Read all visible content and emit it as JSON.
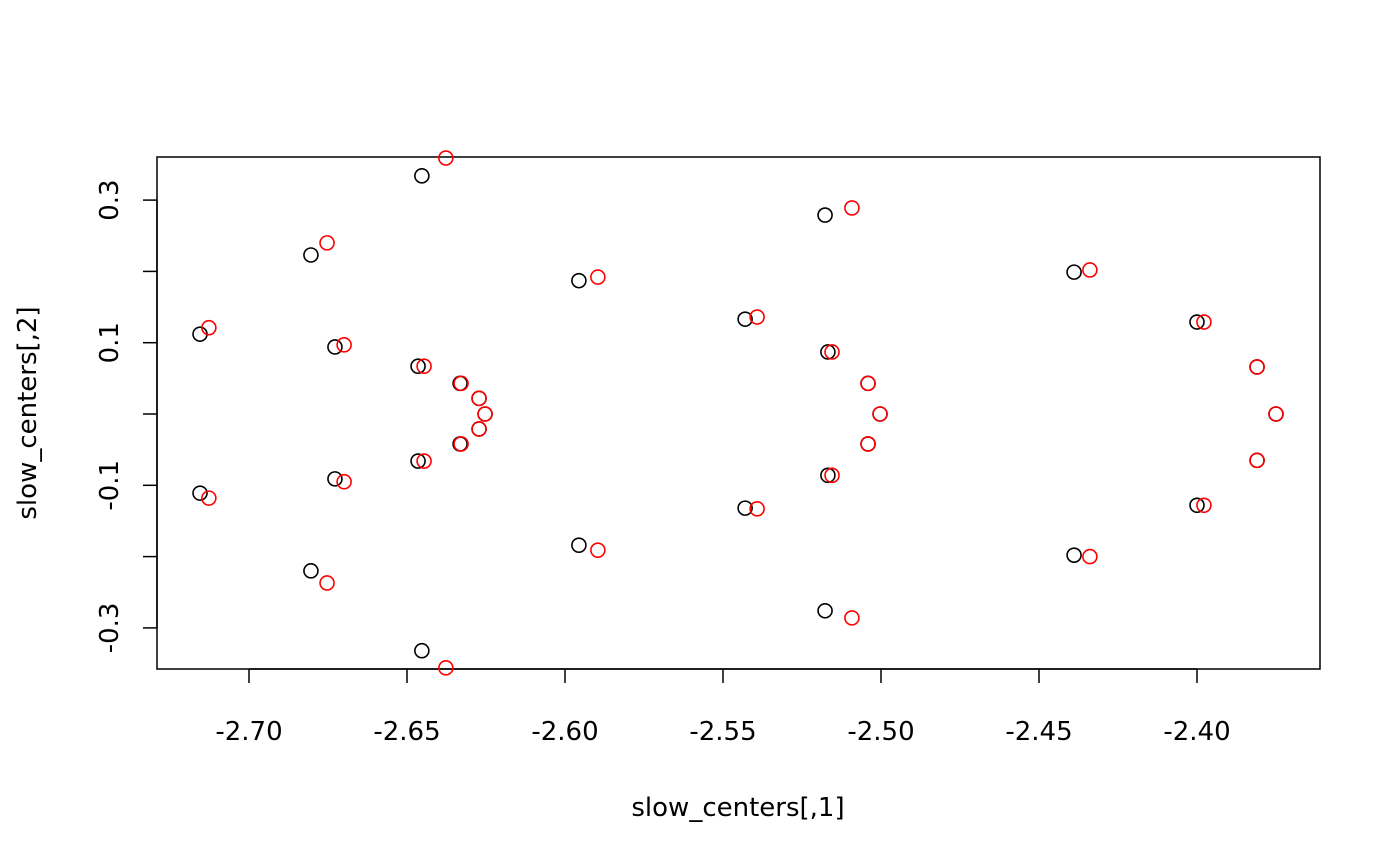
{
  "chart_data": {
    "type": "scatter",
    "title": "",
    "xlabel": "slow_centers[,1]",
    "ylabel": "slow_centers[,2]",
    "xlim": [
      -2.729,
      -2.361
    ],
    "ylim": [
      -0.359,
      0.359
    ],
    "grid": false,
    "x_ticks": [
      -2.7,
      -2.65,
      -2.6,
      -2.55,
      -2.5,
      -2.45,
      -2.4
    ],
    "x_tick_labels": [
      "-2.70",
      "-2.65",
      "-2.60",
      "-2.55",
      "-2.50",
      "-2.45",
      "-2.40"
    ],
    "y_ticks": [
      -0.3,
      -0.2,
      -0.1,
      0.0,
      0.1,
      0.2,
      0.3
    ],
    "y_tick_labels": [
      "-0.3",
      "",
      "-0.1",
      "",
      "0.1",
      "",
      "0.3"
    ],
    "series": [
      {
        "name": "black",
        "color": "#000000",
        "points": [
          [
            -2.6453,
            0.334
          ],
          [
            -2.6804,
            0.223
          ],
          [
            -2.7155,
            0.112
          ],
          [
            -2.6728,
            0.094
          ],
          [
            -2.6465,
            0.067
          ],
          [
            -2.6332,
            0.043
          ],
          [
            -2.6272,
            0.022
          ],
          [
            -2.6253,
            0.0
          ],
          [
            -2.6272,
            -0.021
          ],
          [
            -2.6332,
            -0.042
          ],
          [
            -2.6465,
            -0.066
          ],
          [
            -2.6728,
            -0.091
          ],
          [
            -2.7155,
            -0.111
          ],
          [
            -2.6804,
            -0.22
          ],
          [
            -2.6453,
            -0.332
          ],
          [
            -2.5956,
            0.187
          ],
          [
            -2.5956,
            -0.184
          ],
          [
            -2.543,
            0.133
          ],
          [
            -2.543,
            -0.132
          ],
          [
            -2.5177,
            0.279
          ],
          [
            -2.5168,
            0.087
          ],
          [
            -2.5041,
            0.043
          ],
          [
            -2.5003,
            0.0
          ],
          [
            -2.5041,
            -0.042
          ],
          [
            -2.5168,
            -0.086
          ],
          [
            -2.5177,
            -0.276
          ],
          [
            -2.4389,
            0.199
          ],
          [
            -2.4389,
            -0.198
          ],
          [
            -2.4,
            0.129
          ],
          [
            -2.4,
            -0.128
          ],
          [
            -2.381,
            0.066
          ],
          [
            -2.375,
            0.0
          ],
          [
            -2.381,
            -0.065
          ]
        ]
      },
      {
        "name": "red",
        "color": "#ff0000",
        "points": [
          [
            -2.6377,
            0.359
          ],
          [
            -2.6753,
            0.24
          ],
          [
            -2.7127,
            0.121
          ],
          [
            -2.6699,
            0.097
          ],
          [
            -2.6446,
            0.067
          ],
          [
            -2.6329,
            0.043
          ],
          [
            -2.6272,
            0.022
          ],
          [
            -2.6253,
            0.0
          ],
          [
            -2.6272,
            -0.021
          ],
          [
            -2.6329,
            -0.042
          ],
          [
            -2.6446,
            -0.066
          ],
          [
            -2.6699,
            -0.095
          ],
          [
            -2.7127,
            -0.118
          ],
          [
            -2.6753,
            -0.237
          ],
          [
            -2.6377,
            -0.356
          ],
          [
            -2.5896,
            0.192
          ],
          [
            -2.5896,
            -0.191
          ],
          [
            -2.5392,
            0.136
          ],
          [
            -2.5392,
            -0.133
          ],
          [
            -2.5092,
            0.289
          ],
          [
            -2.5155,
            0.087
          ],
          [
            -2.5041,
            0.043
          ],
          [
            -2.5003,
            0.0
          ],
          [
            -2.5041,
            -0.042
          ],
          [
            -2.5155,
            -0.086
          ],
          [
            -2.5092,
            -0.286
          ],
          [
            -2.4339,
            0.202
          ],
          [
            -2.4339,
            -0.2
          ],
          [
            -2.3978,
            0.129
          ],
          [
            -2.3978,
            -0.128
          ],
          [
            -2.381,
            0.066
          ],
          [
            -2.375,
            0.0
          ],
          [
            -2.381,
            -0.065
          ]
        ]
      }
    ]
  }
}
